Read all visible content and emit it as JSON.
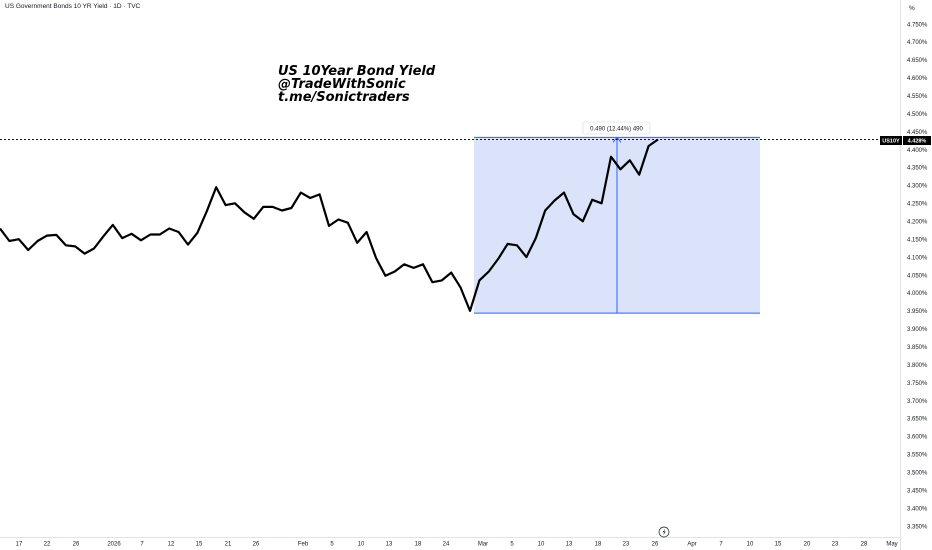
{
  "header": {
    "title": "US Government Bonds 10 YR Yield · 1D · TVC"
  },
  "annotation": {
    "lines": [
      "US 10Year Bond Yield",
      "@TradeWithSonic",
      "t.me/Sonictraders"
    ]
  },
  "measure": {
    "label": "0.490 (12.44%) 490"
  },
  "price_scale": {
    "unit": "%"
  },
  "symbol_badge": {
    "symbol": "US10Y",
    "price": "4.428%"
  },
  "footer": {
    "icon": "lightning-icon"
  },
  "colors": {
    "line": "#000000",
    "range_fill": "#dbe3fb",
    "range_stroke": "#2962ff",
    "badge_bg": "#000000"
  },
  "chart_data": {
    "type": "line",
    "title": "US Government Bonds 10 YR Yield · 1D · TVC",
    "ylabel": "%",
    "ylim": [
      3.3,
      4.8
    ],
    "x_tick_labels": [
      "17",
      "22",
      "26",
      "2026",
      "7",
      "12",
      "15",
      "21",
      "26",
      "Feb",
      "5",
      "10",
      "13",
      "18",
      "24",
      "Mar",
      "5",
      "10",
      "13",
      "18",
      "23",
      "26",
      "Apr",
      "7",
      "10",
      "15",
      "20",
      "23",
      "28",
      "May"
    ],
    "y_tick_labels": [
      "4.750%",
      "4.700%",
      "4.650%",
      "4.600%",
      "4.550%",
      "4.500%",
      "4.450%",
      "4.400%",
      "4.350%",
      "4.300%",
      "4.250%",
      "4.200%",
      "4.150%",
      "4.100%",
      "4.050%",
      "4.000%",
      "3.950%",
      "3.900%",
      "3.850%",
      "3.800%",
      "3.750%",
      "3.700%",
      "3.650%",
      "3.600%",
      "3.550%",
      "3.500%",
      "3.450%",
      "3.400%",
      "3.350%"
    ],
    "y_tick_values": [
      4.75,
      4.7,
      4.65,
      4.6,
      4.55,
      4.5,
      4.45,
      4.4,
      4.35,
      4.3,
      4.25,
      4.2,
      4.15,
      4.1,
      4.05,
      4.0,
      3.95,
      3.9,
      3.85,
      3.8,
      3.75,
      3.7,
      3.65,
      3.6,
      3.55,
      3.5,
      3.45,
      3.4,
      3.35
    ],
    "series": [
      {
        "values": [
          4.18,
          4.145,
          4.15,
          4.12,
          4.145,
          4.16,
          4.162,
          4.133,
          4.13,
          4.11,
          4.124,
          4.158,
          4.19,
          4.153,
          4.165,
          4.147,
          4.163,
          4.163,
          4.18,
          4.17,
          4.135,
          4.168,
          4.228,
          4.295,
          4.245,
          4.25,
          4.225,
          4.207,
          4.24,
          4.24,
          4.23,
          4.237,
          4.28,
          4.265,
          4.275,
          4.187,
          4.205,
          4.196,
          4.14,
          4.17,
          4.098,
          4.048,
          4.06,
          4.08,
          4.07,
          4.08,
          4.03,
          4.035,
          4.057,
          4.015,
          3.95,
          4.035,
          4.06,
          4.095,
          4.137,
          4.133,
          4.1,
          4.153,
          4.23,
          4.258,
          4.28,
          4.22,
          4.2,
          4.26,
          4.25,
          4.38,
          4.345,
          4.37,
          4.33,
          4.41,
          4.428
        ]
      }
    ],
    "current_value": 4.428,
    "measured_range": {
      "low": 3.944,
      "high": 4.434,
      "change": 0.49,
      "change_pct": 12.44,
      "ticks": 490
    }
  }
}
